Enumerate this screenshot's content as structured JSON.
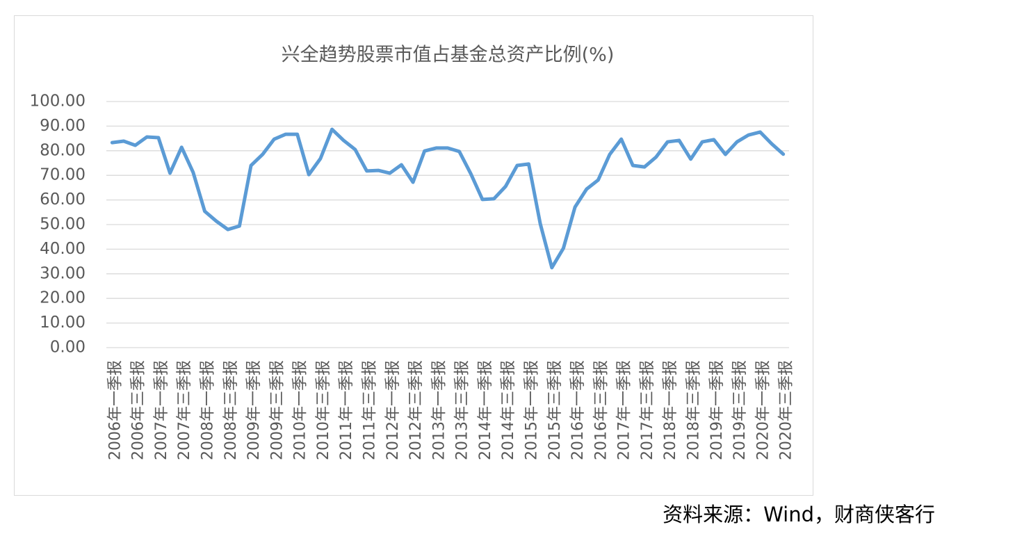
{
  "chart_data": {
    "type": "line",
    "title": "兴全趋势股票市值占基金总资产比例(%)",
    "categories": [
      "2006年一季报",
      null,
      "2006年三季报",
      null,
      "2007年一季报",
      null,
      "2007年三季报",
      null,
      "2008年一季报",
      null,
      "2008年三季报",
      null,
      "2009年一季报",
      null,
      "2009年三季报",
      null,
      "2010年一季报",
      null,
      "2010年三季报",
      null,
      "2011年一季报",
      null,
      "2011年三季报",
      null,
      "2012年一季报",
      null,
      "2012年三季报",
      null,
      "2013年一季报",
      null,
      "2013年三季报",
      null,
      "2014年一季报",
      null,
      "2014年三季报",
      null,
      "2015年一季报",
      null,
      "2015年三季报",
      null,
      "2016年一季报",
      null,
      "2016年三季报",
      null,
      "2017年一季报",
      null,
      "2017年三季报",
      null,
      "2018年一季报",
      null,
      "2018年三季报",
      null,
      "2019年一季报",
      null,
      "2019年三季报",
      null,
      "2020年一季报",
      null,
      "2020年三季报"
    ],
    "series": [
      {
        "color": "#5b9bd5",
        "values": [
          83.3,
          83.9,
          82.2,
          85.6,
          85.3,
          70.9,
          81.4,
          71.2,
          55.4,
          51.4,
          48.0,
          49.4,
          74.0,
          78.5,
          84.7,
          86.7,
          86.7,
          70.3,
          76.8,
          88.7,
          84.2,
          80.5,
          71.8,
          72.0,
          70.9,
          74.3,
          67.2,
          79.9,
          81.1,
          81.1,
          79.7,
          70.6,
          60.2,
          60.5,
          65.5,
          74.0,
          74.6,
          50.3,
          32.5,
          40.4,
          57.1,
          64.4,
          68.1,
          78.5,
          84.7,
          74.0,
          73.4,
          77.4,
          83.6,
          84.2,
          76.6,
          83.6,
          84.5,
          78.5,
          83.6,
          86.4,
          87.6,
          82.8,
          78.6
        ]
      }
    ],
    "ylim": [
      0,
      100
    ],
    "yticks": [
      {
        "value": 0,
        "label": "0.00"
      },
      {
        "value": 10,
        "label": "10.00"
      },
      {
        "value": 20,
        "label": "20.00"
      },
      {
        "value": 30,
        "label": "30.00"
      },
      {
        "value": 40,
        "label": "40.00"
      },
      {
        "value": 50,
        "label": "50.00"
      },
      {
        "value": 60,
        "label": "60.00"
      },
      {
        "value": 70,
        "label": "70.00"
      },
      {
        "value": 80,
        "label": "80.00"
      },
      {
        "value": 90,
        "label": "90.00"
      },
      {
        "value": 100,
        "label": "100.00"
      }
    ],
    "grid": true
  },
  "source": "资料来源：Wind，财商侠客行"
}
